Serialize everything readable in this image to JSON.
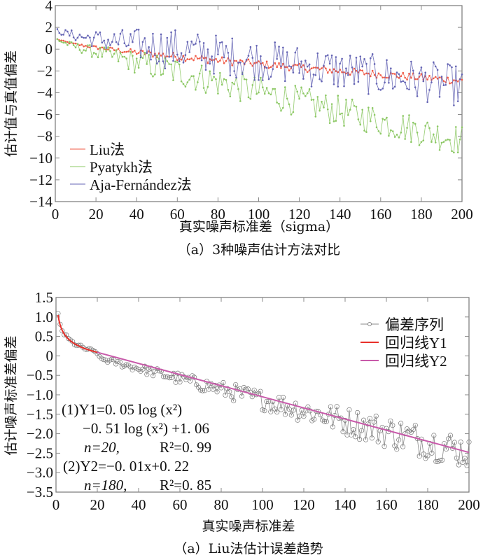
{
  "chart_data": [
    {
      "type": "line",
      "title": "",
      "caption": "（a）3种噪声估计方法对比",
      "xlabel": "真实噪声标准差（sigma）",
      "ylabel": "估计值与真值偏差",
      "xlim": [
        0,
        200
      ],
      "ylim": [
        -14,
        4
      ],
      "xticks": [
        "0",
        "20",
        "40",
        "60",
        "80",
        "100",
        "120",
        "140",
        "160",
        "180",
        "200"
      ],
      "yticks": [
        "4",
        "2",
        "0",
        "−2",
        "−4",
        "−6",
        "−8",
        "−10",
        "−12",
        "−14"
      ],
      "legend_position": "bottom-left",
      "grid": false,
      "series": [
        {
          "name": "Liu法",
          "color": "#f05a46",
          "trend": {
            "start": 1.0,
            "end": -2.6,
            "noise": 0.35
          }
        },
        {
          "name": "Pyatykh法",
          "color": "#8cc864",
          "trend": {
            "start": 1.0,
            "end": -8.0,
            "noise": 1.4
          }
        },
        {
          "name": "Aja-Fernández法",
          "color": "#6464b4",
          "trend": {
            "start": 1.8,
            "end": -3.0,
            "noise": 1.9
          }
        }
      ]
    },
    {
      "type": "line",
      "title": "",
      "caption": "（a）Liu法估计误差趋势",
      "xlabel": "真实噪声标准差",
      "ylabel": "估计噪声标准差偏差",
      "xlim": [
        0,
        200
      ],
      "ylim": [
        -3.5,
        1.5
      ],
      "xticks": [
        "0",
        "20",
        "40",
        "60",
        "80",
        "100",
        "120",
        "140",
        "160",
        "180",
        "200"
      ],
      "yticks": [
        "1.5",
        "1.0",
        "0.5",
        "0",
        "−0.5",
        "−1.0",
        "−1.5",
        "−2.0",
        "−2.5",
        "−3.0",
        "−3.5"
      ],
      "legend_position": "top-right",
      "grid": false,
      "series": [
        {
          "name": "偏差序列",
          "color": "#888888"
        },
        {
          "name": "回归线Y1",
          "color": "#e8302a"
        },
        {
          "name": "回归线Y2",
          "color": "#c85aaa"
        }
      ],
      "regression": {
        "Y1": {
          "label": "(1)Y1=0. 05 log (x²)",
          "label2": "−0. 51 log (x²) +1. 06",
          "stats": {
            "n": "n=20,",
            "r2": "R²=0. 99"
          },
          "range": [
            1,
            20
          ]
        },
        "Y2": {
          "label": "(2)Y2=−0. 01x+0. 22",
          "stats": {
            "n": "n=180,",
            "r2": "R²=0. 85"
          },
          "range": [
            20,
            200
          ],
          "slope": -0.0135,
          "intercept": 0.22
        }
      }
    }
  ]
}
